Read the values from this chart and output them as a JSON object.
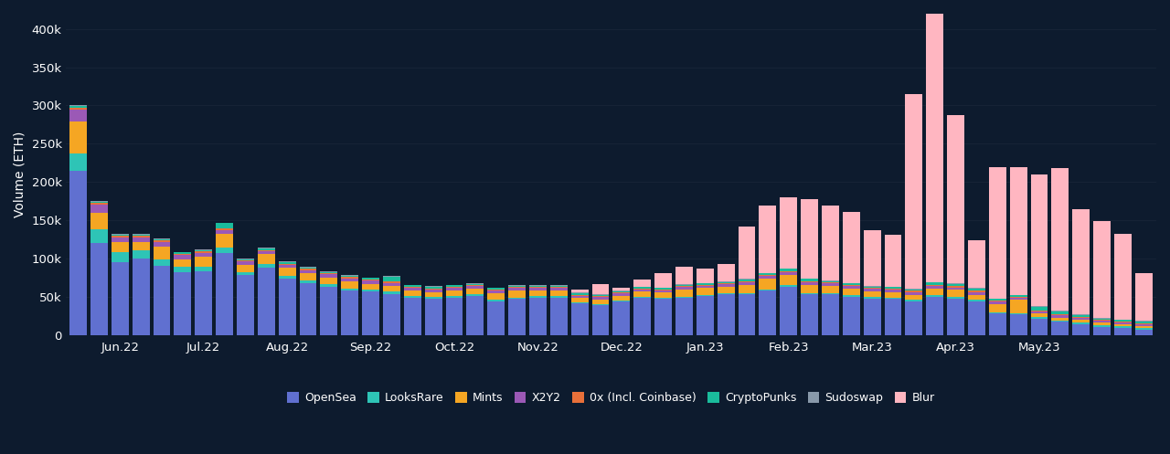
{
  "background_color": "#0d1b2e",
  "text_color": "#ffffff",
  "grid_color": "#162336",
  "ylabel": "Volume (ETH)",
  "xtick_labels": [
    "Jun.22",
    "Jul.22",
    "Aug.22",
    "Sep.22",
    "Oct.22",
    "Nov.22",
    "Dec.22",
    "Jan.23",
    "Feb.23",
    "Mar.23",
    "Apr.23",
    "May.23"
  ],
  "series_order": [
    "OpenSea",
    "LooksRare",
    "Mints",
    "X2Y2",
    "0x (Incl. Coinbase)",
    "CryptoPunks",
    "Sudoswap",
    "Blur"
  ],
  "series": {
    "OpenSea": {
      "color": "#6070d0",
      "values": [
        215000,
        120000,
        95000,
        100000,
        90000,
        82000,
        83000,
        107000,
        78000,
        88000,
        74000,
        68000,
        63000,
        58000,
        57000,
        54000,
        49000,
        47000,
        49000,
        51000,
        44000,
        47000,
        49000,
        49000,
        41000,
        39000,
        44000,
        49000,
        47000,
        49000,
        51000,
        53000,
        53000,
        58000,
        63000,
        53000,
        53000,
        50000,
        48000,
        47000,
        44000,
        50000,
        48000,
        44000,
        28000,
        27000,
        21000,
        17000,
        14000,
        11000,
        9000,
        7000
      ]
    },
    "LooksRare": {
      "color": "#2ec4b6",
      "values": [
        22000,
        18000,
        13000,
        11000,
        9000,
        7000,
        6000,
        7000,
        4500,
        4500,
        3500,
        3500,
        3000,
        2800,
        2800,
        2800,
        2300,
        2300,
        2300,
        2300,
        1800,
        1800,
        1800,
        1800,
        1400,
        1400,
        1400,
        1400,
        1400,
        1400,
        1400,
        1400,
        1800,
        1800,
        1800,
        1800,
        1800,
        1800,
        1800,
        1800,
        1800,
        1800,
        1800,
        1800,
        1800,
        1800,
        2300,
        2300,
        2300,
        2300,
        2300,
        2300
      ]
    },
    "Mints": {
      "color": "#f5a623",
      "values": [
        42000,
        22000,
        13000,
        10000,
        16000,
        10000,
        13000,
        18000,
        9000,
        13000,
        10000,
        9000,
        9000,
        9000,
        7000,
        7000,
        7000,
        7000,
        7000,
        7000,
        9000,
        9000,
        7000,
        7000,
        6000,
        6000,
        6000,
        6000,
        7000,
        9000,
        9000,
        9000,
        11000,
        14000,
        14000,
        11000,
        9000,
        9000,
        7000,
        7000,
        7000,
        9000,
        9000,
        7000,
        11000,
        17000,
        4500,
        3500,
        3500,
        2500,
        2500,
        2500
      ]
    },
    "X2Y2": {
      "color": "#9b59b6",
      "values": [
        16000,
        11000,
        7000,
        7000,
        7000,
        5500,
        5500,
        5500,
        4500,
        4500,
        4500,
        4500,
        4500,
        4500,
        4500,
        4500,
        3500,
        3500,
        3500,
        3500,
        3500,
        3500,
        3500,
        3500,
        3000,
        3000,
        3000,
        3000,
        3000,
        3000,
        3000,
        3000,
        3500,
        3500,
        3500,
        3500,
        3500,
        3500,
        3500,
        3500,
        3500,
        3500,
        3500,
        3500,
        3000,
        3000,
        3000,
        3000,
        2500,
        2500,
        2500,
        2500
      ]
    },
    "0x (Incl. Coinbase)": {
      "color": "#e8703a",
      "values": [
        2500,
        1800,
        1800,
        1800,
        1800,
        1800,
        1800,
        1800,
        1300,
        1300,
        1300,
        1300,
        1300,
        1300,
        1300,
        1300,
        1300,
        1300,
        1300,
        1300,
        1300,
        1300,
        1300,
        1300,
        1300,
        1300,
        1300,
        1300,
        1300,
        1300,
        1300,
        1300,
        1300,
        1300,
        1300,
        1300,
        1300,
        1300,
        1300,
        1300,
        1300,
        1300,
        1300,
        1300,
        1300,
        1300,
        1300,
        1300,
        1300,
        1300,
        1300,
        1300
      ]
    },
    "CryptoPunks": {
      "color": "#1abc9c",
      "values": [
        1800,
        1800,
        1800,
        1800,
        1800,
        1800,
        1800,
        7000,
        1800,
        1800,
        1800,
        1800,
        1800,
        1800,
        1800,
        7000,
        1800,
        1800,
        1800,
        1800,
        1800,
        1800,
        1800,
        1800,
        1800,
        1800,
        1800,
        1800,
        1800,
        1800,
        1800,
        1800,
        1800,
        1800,
        2800,
        2800,
        1800,
        1800,
        1800,
        1800,
        1800,
        2800,
        2800,
        2800,
        1800,
        1800,
        4500,
        3500,
        2800,
        1800,
        1800,
        1800
      ]
    },
    "Sudoswap": {
      "color": "#8899aa",
      "values": [
        800,
        800,
        800,
        800,
        800,
        800,
        800,
        800,
        800,
        800,
        800,
        800,
        800,
        800,
        800,
        800,
        800,
        800,
        800,
        800,
        800,
        800,
        800,
        800,
        800,
        800,
        800,
        800,
        800,
        800,
        800,
        800,
        800,
        800,
        800,
        800,
        800,
        800,
        800,
        800,
        800,
        800,
        800,
        800,
        800,
        800,
        800,
        800,
        800,
        800,
        800,
        800
      ]
    },
    "Blur": {
      "color": "#ffb6c1",
      "values": [
        0,
        0,
        0,
        0,
        0,
        0,
        0,
        0,
        0,
        0,
        0,
        0,
        0,
        0,
        0,
        0,
        0,
        0,
        0,
        0,
        0,
        0,
        0,
        0,
        4000,
        13000,
        4000,
        9000,
        18000,
        23000,
        18000,
        23000,
        68000,
        88000,
        93000,
        103000,
        98000,
        93000,
        73000,
        68000,
        255000,
        355000,
        220000,
        63000,
        172000,
        167000,
        172000,
        187000,
        137000,
        127000,
        112000,
        63000
      ]
    }
  },
  "ylim": [
    0,
    420000
  ],
  "ytick_values": [
    0,
    50000,
    100000,
    150000,
    200000,
    250000,
    300000,
    350000,
    400000
  ],
  "ytick_labels": [
    "0",
    "50k",
    "100k",
    "150k",
    "200k",
    "250k",
    "300k",
    "350k",
    "400k"
  ],
  "n_weeks": 52,
  "xtick_positions": [
    2,
    6,
    10,
    14,
    18,
    22,
    26,
    30,
    34,
    38,
    42,
    46
  ]
}
